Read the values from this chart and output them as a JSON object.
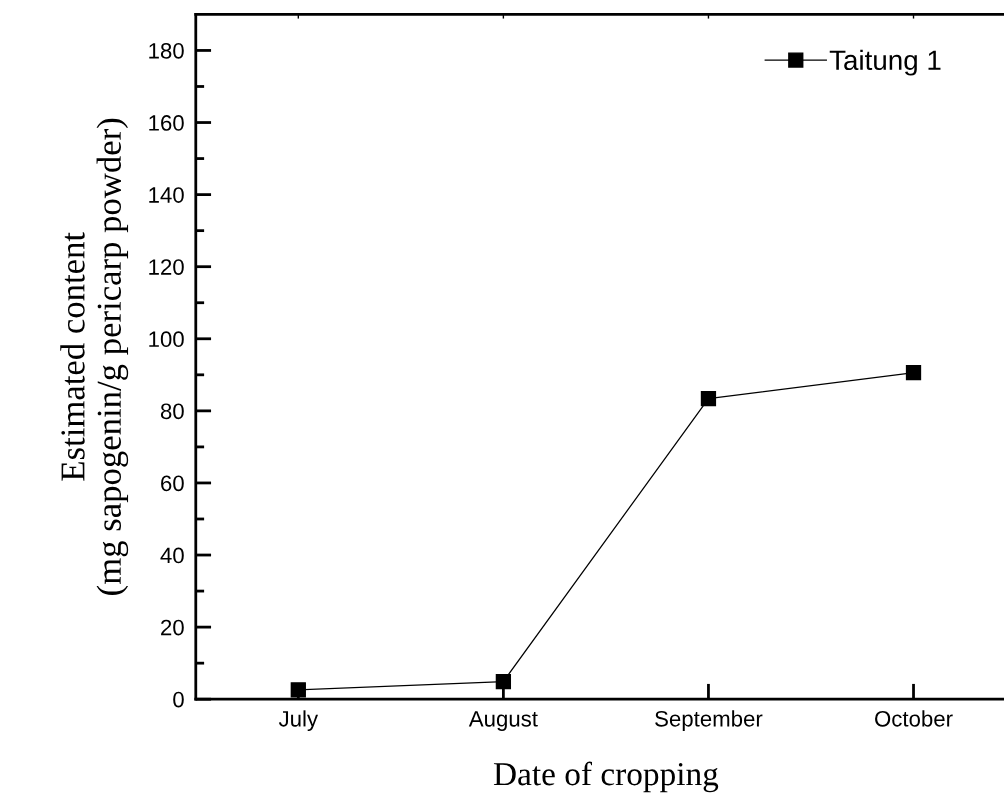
{
  "chart_data": {
    "type": "line",
    "xlabel": "Date of cropping",
    "ylabel": "Estimated content\n(mg sapogenin/g pericarp powder)",
    "categories": [
      "July",
      "August",
      "September",
      "October"
    ],
    "series": [
      {
        "name": "Taitung 1",
        "color": "#000000",
        "values": [
          2.6,
          4.9,
          83.4,
          90.6
        ]
      }
    ],
    "ylim": [
      0,
      190
    ],
    "yticks": [
      0,
      20,
      40,
      60,
      80,
      100,
      120,
      140,
      160,
      180
    ],
    "grid": false,
    "legend": "top right",
    "marker": "square",
    "line_style": "solid"
  }
}
